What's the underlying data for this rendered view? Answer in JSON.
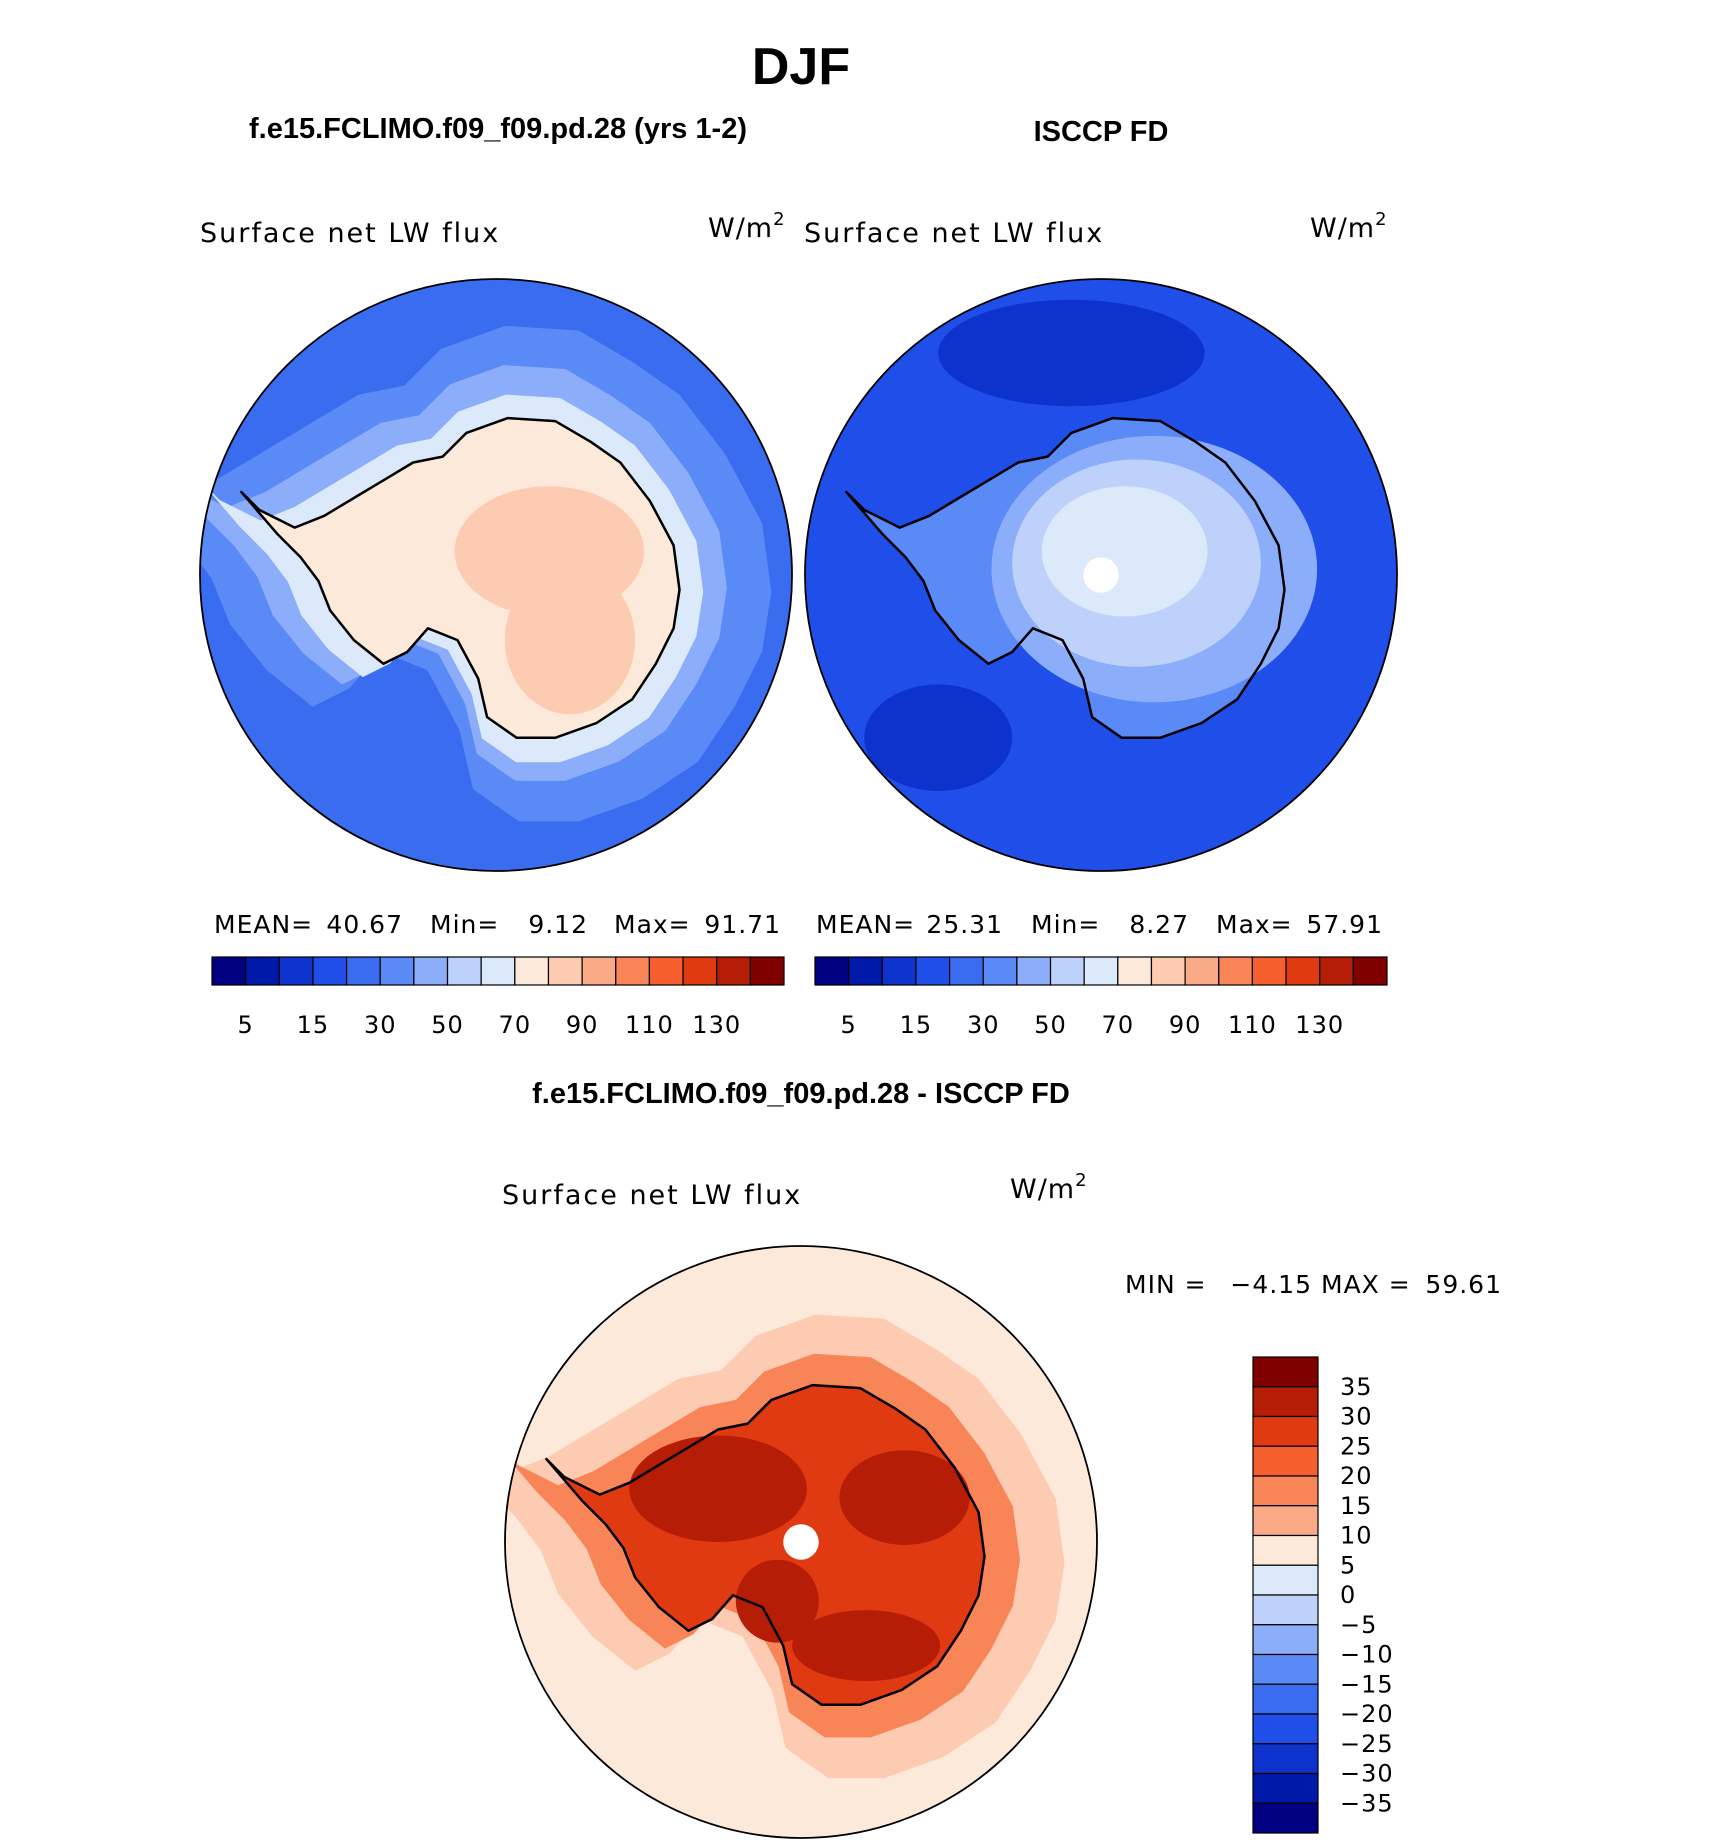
{
  "page": {
    "season": "DJF",
    "left_title": "f.e15.FCLIMO.f09_f09.pd.28 (yrs 1-2)",
    "right_title": "ISCCP FD",
    "diff_title": "f.e15.FCLIMO.f09_f09.pd.28 - ISCCP FD"
  },
  "panels": {
    "model": {
      "label": "Surface net LW flux",
      "units": "W/m",
      "units_sup": "2",
      "mean_label": "MEAN=",
      "mean": "40.67",
      "min_label": "Min=",
      "min": "9.12",
      "max_label": "Max=",
      "max": "91.71"
    },
    "obs": {
      "label": "Surface net LW flux",
      "units": "W/m",
      "units_sup": "2",
      "mean_label": "MEAN=",
      "mean": "25.31",
      "min_label": "Min=",
      "min": "8.27",
      "max_label": "Max=",
      "max": "57.91"
    },
    "diff": {
      "label": "Surface net LW flux",
      "units": "W/m",
      "units_sup": "2",
      "min_label": "MIN =",
      "min": "−4.15",
      "max_label": "MAX =",
      "max": "59.61"
    }
  },
  "colorbar_abs": {
    "colors": [
      "#000080",
      "#0019a8",
      "#0d33cc",
      "#1f4fe8",
      "#3a6cf0",
      "#5a8af5",
      "#8caefa",
      "#bed1fb",
      "#dce9fb",
      "#fde9da",
      "#fccbb1",
      "#fbaa88",
      "#f88558",
      "#f55e2d",
      "#e03a12",
      "#b51d07",
      "#800000"
    ],
    "tick_labels": [
      "5",
      "15",
      "30",
      "50",
      "70",
      "90",
      "110",
      "130"
    ]
  },
  "colorbar_diff": {
    "colors": [
      "#800000",
      "#b51d07",
      "#e03a12",
      "#f55e2d",
      "#f88558",
      "#fbaa88",
      "#fde9da",
      "#dce9fb",
      "#bed1fb",
      "#8caefa",
      "#5a8af5",
      "#3a6cf0",
      "#1f4fe8",
      "#0d33cc",
      "#0019a8",
      "#000080"
    ],
    "tick_labels": [
      "35",
      "30",
      "25",
      "20",
      "15",
      "10",
      "5",
      "0",
      "−5",
      "−10",
      "−15",
      "−20",
      "−25",
      "−30",
      "−35"
    ]
  },
  "map_colors": {
    "ocean_model": "#3a6cf0",
    "ocean_model_light": "#5a8af5",
    "ice_model": "#fde9da",
    "ice_model_warm": "#fccbb1",
    "ocean_obs": "#1f4fe8",
    "ocean_obs_dark": "#0d33cc",
    "ice_obs": "#bed1fb",
    "ice_obs_light": "#dce9fb",
    "diff_background": "#fde9da",
    "diff_light": "#fccbb1",
    "diff_mid": "#f88558",
    "diff_strong": "#e03a12",
    "diff_max": "#b51d07",
    "coastline": "#000000",
    "pole_mask": "#ffffff"
  }
}
